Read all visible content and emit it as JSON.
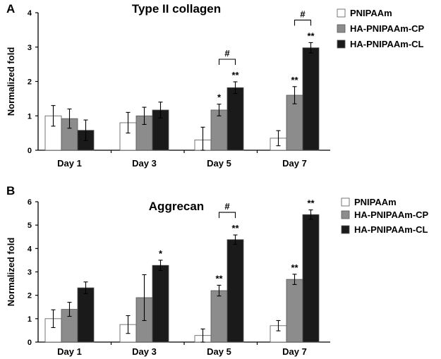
{
  "chart_data": [
    {
      "type": "bar",
      "panel": "A",
      "title": "Type II collagen",
      "ylabel": "Normalized fold",
      "xlabel": "",
      "ylim": [
        0,
        4
      ],
      "yticks": [
        "0",
        "1",
        "2",
        "3",
        "4"
      ],
      "categories": [
        "Day 1",
        "Day 3",
        "Day 5",
        "Day 7"
      ],
      "legend_position": "top-right",
      "grid": false,
      "series": [
        {
          "name": "PNIPAAm",
          "color": "#ffffff",
          "values": [
            1.0,
            0.8,
            0.3,
            0.35
          ],
          "errors": [
            0.3,
            0.3,
            0.37,
            0.22
          ]
        },
        {
          "name": "HA-PNIPAAm-CP",
          "color": "#8c8c8c",
          "values": [
            0.92,
            1.0,
            1.17,
            1.6
          ],
          "errors": [
            0.28,
            0.25,
            0.17,
            0.25
          ]
        },
        {
          "name": "HA-PNIPAAm-CL",
          "color": "#1a1a1a",
          "values": [
            0.58,
            1.17,
            1.82,
            2.98
          ],
          "errors": [
            0.3,
            0.23,
            0.17,
            0.15
          ]
        }
      ],
      "significance": [
        {
          "category": 2,
          "series": 1,
          "label": "*"
        },
        {
          "category": 2,
          "series": 2,
          "label": "**"
        },
        {
          "category": 3,
          "series": 1,
          "label": "**"
        },
        {
          "category": 3,
          "series": 2,
          "label": "**"
        }
      ],
      "brackets": [
        {
          "category": 2,
          "from_series": 1,
          "to_series": 2,
          "label": "#"
        },
        {
          "category": 3,
          "from_series": 1,
          "to_series": 2,
          "label": "#"
        }
      ]
    },
    {
      "type": "bar",
      "panel": "B",
      "title": "Aggrecan",
      "ylabel": "Normalized fold",
      "xlabel": "",
      "ylim": [
        0,
        6
      ],
      "yticks": [
        "0",
        "1",
        "2",
        "3",
        "4",
        "5",
        "6"
      ],
      "categories": [
        "Day 1",
        "Day 3",
        "Day 5",
        "Day 7"
      ],
      "legend_position": "top-right",
      "grid": false,
      "series": [
        {
          "name": "PNIPAAm",
          "color": "#ffffff",
          "values": [
            1.0,
            0.75,
            0.28,
            0.7
          ],
          "errors": [
            0.38,
            0.38,
            0.28,
            0.22
          ]
        },
        {
          "name": "HA-PNIPAAm-CP",
          "color": "#8c8c8c",
          "values": [
            1.4,
            1.9,
            2.2,
            2.68
          ],
          "errors": [
            0.3,
            0.98,
            0.23,
            0.22
          ]
        },
        {
          "name": "HA-PNIPAAm-CL",
          "color": "#1a1a1a",
          "values": [
            2.32,
            3.28,
            4.38,
            5.45
          ],
          "errors": [
            0.25,
            0.22,
            0.2,
            0.2
          ]
        }
      ],
      "significance": [
        {
          "category": 1,
          "series": 2,
          "label": "*"
        },
        {
          "category": 2,
          "series": 1,
          "label": "**"
        },
        {
          "category": 2,
          "series": 2,
          "label": "**"
        },
        {
          "category": 3,
          "series": 1,
          "label": "**"
        },
        {
          "category": 3,
          "series": 2,
          "label": "**"
        }
      ],
      "brackets": [
        {
          "category": 2,
          "from_series": 1,
          "to_series": 2,
          "label": "#"
        }
      ]
    }
  ]
}
